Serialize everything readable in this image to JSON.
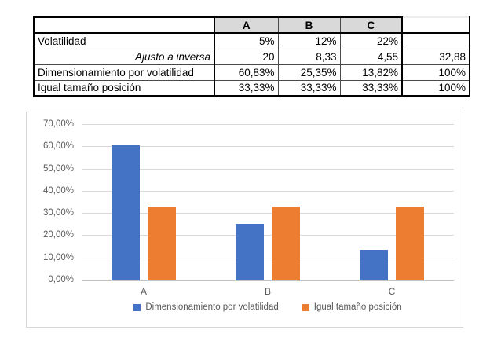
{
  "table": {
    "header": [
      "",
      "A",
      "B",
      "C",
      ""
    ],
    "rows": [
      {
        "label": "Volatilidad",
        "label_align": "left",
        "italic": false,
        "values": [
          "5%",
          "12%",
          "22%",
          ""
        ]
      },
      {
        "label": "Ajusto a inversa",
        "label_align": "right",
        "italic": true,
        "values": [
          "20",
          "8,33",
          "4,55",
          "32,88"
        ]
      },
      {
        "label": "Dimensionamiento por volatilidad",
        "label_align": "left",
        "italic": false,
        "values": [
          "60,83%",
          "25,35%",
          "13,82%",
          "100%"
        ]
      },
      {
        "label": "Igual tamaño posición",
        "label_align": "left",
        "italic": false,
        "values": [
          "33,33%",
          "33,33%",
          "33,33%",
          "100%"
        ]
      }
    ]
  },
  "chart_data": {
    "type": "bar",
    "categories": [
      "A",
      "B",
      "C"
    ],
    "series": [
      {
        "name": "Dimensionamiento por volatilidad",
        "values": [
          60.83,
          25.35,
          13.82
        ],
        "color": "#4472C4"
      },
      {
        "name": "Igual tamaño posición",
        "values": [
          33.33,
          33.33,
          33.33
        ],
        "color": "#ED7D31"
      }
    ],
    "title": "",
    "xlabel": "",
    "ylabel": "",
    "ylim": [
      0,
      70
    ],
    "yticks": [
      0,
      10,
      20,
      30,
      40,
      50,
      60,
      70
    ],
    "ytick_labels": [
      "0,00%",
      "10,00%",
      "20,00%",
      "30,00%",
      "40,00%",
      "50,00%",
      "60,00%",
      "70,00%"
    ],
    "grid": true,
    "legend_position": "bottom"
  },
  "colors": {
    "header_fill": "#D9D9D9",
    "gridline": "#D9D9D9",
    "axis_text": "#595959",
    "series_blue": "#4472C4",
    "series_orange": "#ED7D31"
  }
}
